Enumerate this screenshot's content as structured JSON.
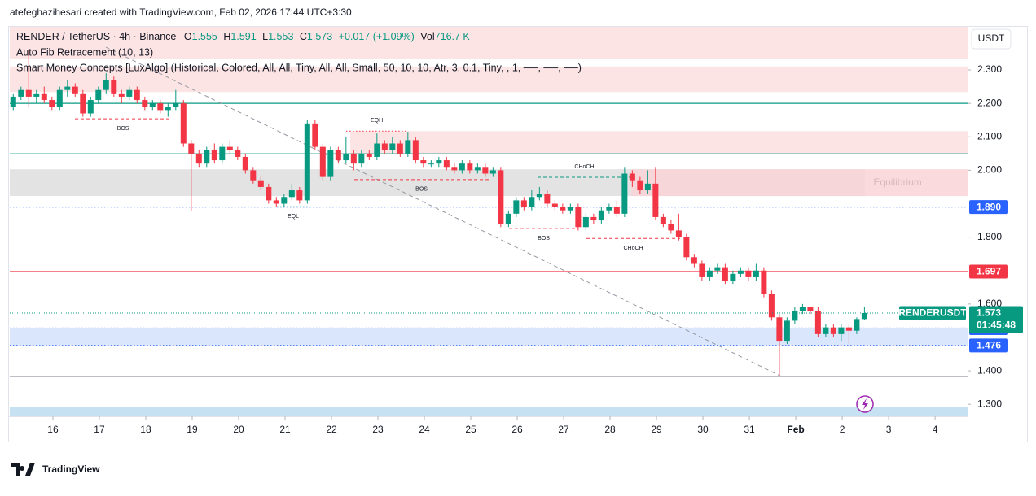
{
  "header": {
    "credit": "atefeghazihesari created with TradingView.com, Feb 02, 2026 17:44 UTC+3:30"
  },
  "legend": {
    "symbol": "RENDER / TetherUS · 4h · Binance",
    "ohlc_prefixes": [
      "O",
      "H",
      "L",
      "C"
    ],
    "change": "+0.017 (+1.09%)",
    "volume_prefix": "Vol",
    "volume": "716.7 K",
    "indicators": [
      "Auto Fib Retracement (10, 13)",
      "Smart Money Concepts [LuxAlgo] (Historical, Colored, All, All, Tiny, All, All, Small, 50, 10, 10, Atr, 3, 0.1, Tiny, , 1, ──, ──, ──)"
    ]
  },
  "logo": "TradingView",
  "chart_data": {
    "type": "candlestick",
    "symbol": "RENDERUSDT",
    "currency": "USDT",
    "up_color": "#089981",
    "down_color": "#f23645",
    "x": [
      3.5,
      7.5,
      11.5,
      15.5,
      19.5,
      23.5,
      27.5,
      31.5,
      35.5,
      39.5,
      43.5,
      47.5,
      51.5,
      55.5,
      59.5,
      63.5,
      67.5,
      71.5,
      75.5,
      79.5,
      83.5,
      87.5,
      91.5,
      95.5,
      99.5,
      103.5,
      107.5,
      111.5,
      115.5,
      119.5,
      123.5,
      127.5,
      131.5,
      135.5,
      139.5,
      143.5,
      147.5,
      151.5,
      155.5,
      159.5,
      163.5,
      167.5,
      171.5,
      175.5,
      179.5,
      183.5,
      187.5,
      191.5,
      195.5,
      199.5,
      203.5,
      207.5,
      211.5,
      215.5,
      219.5,
      223.5,
      227.5,
      231.5,
      235.5,
      239.5,
      243.5,
      247.5,
      251.5,
      255.5,
      259.5,
      263.5,
      267.5,
      271.5,
      275.5,
      279.5,
      283.5,
      287.5,
      291.5,
      295.5,
      299.5,
      303.5,
      307.5,
      311.5,
      315.5,
      319.5,
      323.5,
      327.5,
      331.5,
      335.5,
      339.5,
      343.5,
      347.5,
      351.5,
      355.5,
      359.5,
      363.5,
      367.5,
      371.5,
      375.5,
      379.5,
      383.5,
      387.5,
      391.5,
      395.5,
      399.5,
      403.5,
      407.5,
      411.5,
      415.5,
      419.5,
      423.5,
      427.5,
      431.5,
      435.5,
      439.5,
      443.5
    ],
    "open": [
      2.19,
      2.22,
      2.24,
      2.22,
      2.23,
      2.21,
      2.19,
      2.24,
      2.25,
      2.23,
      2.17,
      2.21,
      2.24,
      2.27,
      2.23,
      2.22,
      2.24,
      2.21,
      2.19,
      2.2,
      2.18,
      2.19,
      2.2,
      2.08,
      2.05,
      2.02,
      2.06,
      2.03,
      2.07,
      2.06,
      2.04,
      2.0,
      1.97,
      1.95,
      1.91,
      1.9,
      1.92,
      1.94,
      1.91,
      2.14,
      2.07,
      1.98,
      2.06,
      2.03,
      2.05,
      2.02,
      2.05,
      2.04,
      2.08,
      2.06,
      2.08,
      2.05,
      2.09,
      2.03,
      2.02,
      2.02,
      2.03,
      2.01,
      2.0,
      2.02,
      2.0,
      2.01,
      1.99,
      2.0,
      1.84,
      1.87,
      1.91,
      1.89,
      1.92,
      1.93,
      1.9,
      1.89,
      1.88,
      1.89,
      1.83,
      1.86,
      1.85,
      1.88,
      1.89,
      1.87,
      1.99,
      1.97,
      1.94,
      1.96,
      1.86,
      1.84,
      1.82,
      1.8,
      1.74,
      1.72,
      1.68,
      1.7,
      1.71,
      1.67,
      1.69,
      1.7,
      1.68,
      1.7,
      1.63,
      1.56,
      1.49,
      1.55,
      1.58,
      1.59,
      1.58,
      1.51,
      1.53,
      1.51,
      1.53,
      1.52,
      1.555
    ],
    "high": [
      2.23,
      2.25,
      2.36,
      2.24,
      2.25,
      2.22,
      2.25,
      2.27,
      2.26,
      2.24,
      2.22,
      2.25,
      2.29,
      2.28,
      2.24,
      2.25,
      2.25,
      2.22,
      2.21,
      2.21,
      2.2,
      2.24,
      2.21,
      2.09,
      2.06,
      2.07,
      2.08,
      2.08,
      2.09,
      2.07,
      2.05,
      2.01,
      1.98,
      1.96,
      1.92,
      1.93,
      1.96,
      1.95,
      2.15,
      2.15,
      2.08,
      2.07,
      2.07,
      2.1,
      2.06,
      2.06,
      2.06,
      2.11,
      2.09,
      2.1,
      2.09,
      2.115,
      2.1,
      2.04,
      2.03,
      2.04,
      2.04,
      2.02,
      2.03,
      2.03,
      2.02,
      2.02,
      2.01,
      2.01,
      1.88,
      1.92,
      1.92,
      1.94,
      1.95,
      1.94,
      1.91,
      1.9,
      1.9,
      1.9,
      1.87,
      1.87,
      1.89,
      1.9,
      1.91,
      2.01,
      2.0,
      1.98,
      2.0,
      2.01,
      1.87,
      1.85,
      1.87,
      1.81,
      1.75,
      1.73,
      1.71,
      1.72,
      1.72,
      1.7,
      1.71,
      1.71,
      1.72,
      1.71,
      1.64,
      1.57,
      1.56,
      1.59,
      1.6,
      1.59,
      1.59,
      1.54,
      1.54,
      1.54,
      1.54,
      1.56,
      1.591
    ],
    "low": [
      2.18,
      2.21,
      2.19,
      2.2,
      2.2,
      2.18,
      2.18,
      2.22,
      2.22,
      2.16,
      2.16,
      2.2,
      2.23,
      2.22,
      2.2,
      2.21,
      2.2,
      2.18,
      2.18,
      2.17,
      2.16,
      2.18,
      2.07,
      1.877,
      2.01,
      2.01,
      2.02,
      2.02,
      2.05,
      2.03,
      1.99,
      1.96,
      1.94,
      1.9,
      1.89,
      1.89,
      1.91,
      1.9,
      1.9,
      2.06,
      1.97,
      1.97,
      2.02,
      2.02,
      2.0,
      2.01,
      2.03,
      2.03,
      2.05,
      2.05,
      2.04,
      2.04,
      2.02,
      2.01,
      2.01,
      2.01,
      2.0,
      1.99,
      1.99,
      1.99,
      1.99,
      1.98,
      1.98,
      1.83,
      1.83,
      1.86,
      1.88,
      1.88,
      1.91,
      1.89,
      1.88,
      1.87,
      1.87,
      1.82,
      1.82,
      1.84,
      1.84,
      1.87,
      1.86,
      1.86,
      1.95,
      1.93,
      1.93,
      1.85,
      1.83,
      1.81,
      1.79,
      1.73,
      1.71,
      1.67,
      1.67,
      1.69,
      1.66,
      1.66,
      1.68,
      1.67,
      1.67,
      1.62,
      1.55,
      1.385,
      1.48,
      1.54,
      1.57,
      1.57,
      1.5,
      1.5,
      1.5,
      1.49,
      1.48,
      1.51,
      1.553
    ],
    "close": [
      2.22,
      2.24,
      2.22,
      2.23,
      2.21,
      2.19,
      2.24,
      2.25,
      2.23,
      2.17,
      2.21,
      2.24,
      2.27,
      2.23,
      2.22,
      2.24,
      2.21,
      2.19,
      2.2,
      2.18,
      2.19,
      2.2,
      2.08,
      2.05,
      2.02,
      2.06,
      2.03,
      2.07,
      2.06,
      2.04,
      2.0,
      1.97,
      1.95,
      1.91,
      1.9,
      1.92,
      1.94,
      1.91,
      2.14,
      2.07,
      1.98,
      2.06,
      2.03,
      2.05,
      2.02,
      2.05,
      2.04,
      2.08,
      2.06,
      2.08,
      2.05,
      2.09,
      2.03,
      2.02,
      2.02,
      2.03,
      2.01,
      2.0,
      2.02,
      2.0,
      2.01,
      1.99,
      2.0,
      1.84,
      1.87,
      1.91,
      1.89,
      1.92,
      1.93,
      1.9,
      1.89,
      1.88,
      1.89,
      1.83,
      1.86,
      1.85,
      1.88,
      1.89,
      1.87,
      1.99,
      1.97,
      1.94,
      1.96,
      1.86,
      1.84,
      1.82,
      1.8,
      1.74,
      1.72,
      1.68,
      1.7,
      1.71,
      1.67,
      1.69,
      1.7,
      1.68,
      1.7,
      1.63,
      1.56,
      1.49,
      1.55,
      1.58,
      1.59,
      1.58,
      1.51,
      1.53,
      1.51,
      1.53,
      1.52,
      1.555,
      1.573
    ],
    "countdown": "01:45:48",
    "xlim": [
      1.7,
      496.8
    ],
    "ylim": [
      1.264,
      2.429
    ],
    "xticks": [
      {
        "value": 24,
        "label": "16"
      },
      {
        "value": 48,
        "label": "17"
      },
      {
        "value": 72,
        "label": "18"
      },
      {
        "value": 96,
        "label": "19"
      },
      {
        "value": 120,
        "label": "20"
      },
      {
        "value": 144,
        "label": "21"
      },
      {
        "value": 168,
        "label": "22"
      },
      {
        "value": 192,
        "label": "23"
      },
      {
        "value": 216,
        "label": "24"
      },
      {
        "value": 240,
        "label": "25"
      },
      {
        "value": 264,
        "label": "26"
      },
      {
        "value": 288,
        "label": "27"
      },
      {
        "value": 312,
        "label": "28"
      },
      {
        "value": 336,
        "label": "29"
      },
      {
        "value": 360,
        "label": "30"
      },
      {
        "value": 384,
        "label": "31"
      },
      {
        "value": 408,
        "label": "Feb"
      },
      {
        "value": 432,
        "label": "2"
      },
      {
        "value": 456,
        "label": "3"
      },
      {
        "value": 480,
        "label": "4"
      }
    ],
    "yticks": [
      {
        "value": 2.3,
        "label": "2.300"
      },
      {
        "value": 2.2,
        "label": "2.200"
      },
      {
        "value": 2.1,
        "label": "2.100"
      },
      {
        "value": 2.0,
        "label": "2.000"
      },
      {
        "value": 1.8,
        "label": "1.800"
      },
      {
        "value": 1.6,
        "label": "1.600"
      },
      {
        "value": 1.4,
        "label": "1.400"
      },
      {
        "value": 1.3,
        "label": "1.300"
      }
    ],
    "zones": [
      {
        "top": 2.429,
        "bottom": 2.334,
        "color": "#fbdfe0"
      },
      {
        "top": 2.31,
        "bottom": 2.234,
        "color": "#fbdfe0"
      },
      {
        "top": 2.117,
        "bottom": 2.047,
        "x": [
          177.7,
          496.8
        ],
        "color": "#fbdfe0"
      },
      {
        "top": 2.003,
        "bottom": 1.923,
        "x": [
          1.7,
          443.8
        ],
        "color": "#dedede",
        "label": "Equilibrium"
      },
      {
        "top": 2.003,
        "bottom": 1.923,
        "x": [
          322.9,
          496.8
        ],
        "color": "#f9d3d6"
      },
      {
        "top": 1.528,
        "bottom": 1.476,
        "color": "#d4e2fc"
      },
      {
        "top": 1.293,
        "bottom": 1.264,
        "color": "#bcdcee"
      }
    ],
    "levels": [
      {
        "value": 2.2,
        "color": "#089981",
        "style": "solid"
      },
      {
        "value": 2.049,
        "color": "#089981",
        "style": "solid"
      },
      {
        "value": 1.89,
        "label": "1.890",
        "color": "#2962ff",
        "style": "dotted"
      },
      {
        "value": 1.697,
        "color": "#f23645",
        "style": "solid",
        "tag": true
      },
      {
        "value": 1.528,
        "color": "#2962ff",
        "style": "dotted",
        "tag": true
      },
      {
        "value": 1.476,
        "color": "#2962ff",
        "style": "dotted",
        "tag": true
      },
      {
        "value": 1.383,
        "color": "#9598a1",
        "style": "solid"
      }
    ],
    "structures": [
      {
        "label": "BOS",
        "value": 2.154,
        "x": [
          35.4,
          85.1
        ],
        "color": "#f23645",
        "style": "dashed",
        "label_side": "below"
      },
      {
        "label": "EQH",
        "value": 2.117,
        "x": [
          175.6,
          207.2
        ],
        "color": "#f23645",
        "style": "dotted",
        "label_side": "above"
      },
      {
        "label": "BOS",
        "value": 1.972,
        "x": [
          179.8,
          249.3
        ],
        "color": "#f23645",
        "style": "dashed",
        "label_side": "below"
      },
      {
        "label": "CHoCH",
        "value": 1.979,
        "x": [
          274.5,
          322.9
        ],
        "color": "#089981",
        "style": "dashed",
        "label_side": "above"
      },
      {
        "label": "EQL",
        "value": 1.891,
        "x": [
          139.8,
          156.6
        ],
        "color": "#089981",
        "style": "dotted",
        "label_side": "below"
      },
      {
        "label": "BOS",
        "value": 1.826,
        "x": [
          259.8,
          295.6
        ],
        "color": "#f23645",
        "style": "dashed",
        "label_side": "below"
      },
      {
        "label": "CHoCH",
        "value": 1.796,
        "x": [
          299.8,
          348.2
        ],
        "color": "#f23645",
        "style": "dashed",
        "label_side": "below"
      }
    ],
    "trendline": {
      "x": [
        51.4,
        400
      ],
      "y": [
        2.368,
        1.385
      ],
      "color": "#9598a1"
    }
  }
}
